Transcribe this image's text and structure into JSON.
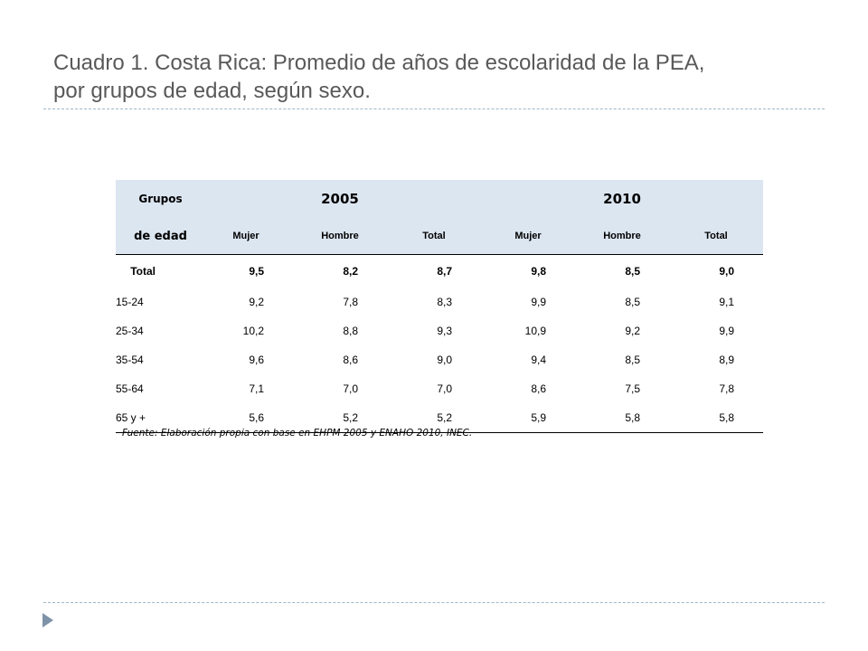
{
  "title": {
    "line1": "Cuadro 1. Costa Rica: Promedio de años de escolaridad de la PEA,",
    "line2": "por grupos de edad, según sexo."
  },
  "table": {
    "header_grupos": "Grupos",
    "header_edad": "de edad",
    "years": [
      "2005",
      "2010"
    ],
    "subheaders": [
      "Mujer",
      "Hombre",
      "Total",
      "Mujer",
      "Hombre",
      "Total"
    ],
    "rows": [
      {
        "group": "Total",
        "values": [
          "9,5",
          "8,2",
          "8,7",
          "9,8",
          "8,5",
          "9,0"
        ]
      },
      {
        "group": "15-24",
        "values": [
          "9,2",
          "7,8",
          "8,3",
          "9,9",
          "8,5",
          "9,1"
        ]
      },
      {
        "group": "25-34",
        "values": [
          "10,2",
          "8,8",
          "9,3",
          "10,9",
          "9,2",
          "9,9"
        ]
      },
      {
        "group": "35-54",
        "values": [
          "9,6",
          "8,6",
          "9,0",
          "9,4",
          "8,5",
          "8,9"
        ]
      },
      {
        "group": "55-64",
        "values": [
          "7,1",
          "7,0",
          "7,0",
          "8,6",
          "7,5",
          "7,8"
        ]
      },
      {
        "group": "65 y +",
        "values": [
          "5,6",
          "5,2",
          "5,2",
          "5,9",
          "5,8",
          "5,8"
        ]
      }
    ]
  },
  "source": "Fuente: Elaboración propia con base en EHPM 2005 y ENAHO 2010, INEC.",
  "colors": {
    "header_fill": "#dce6f1",
    "title_text": "#595959",
    "divider": "#9fb6c6",
    "bullet_arrow": "#7f93a8"
  },
  "icons": {
    "bullet": "triangle-right-icon"
  }
}
